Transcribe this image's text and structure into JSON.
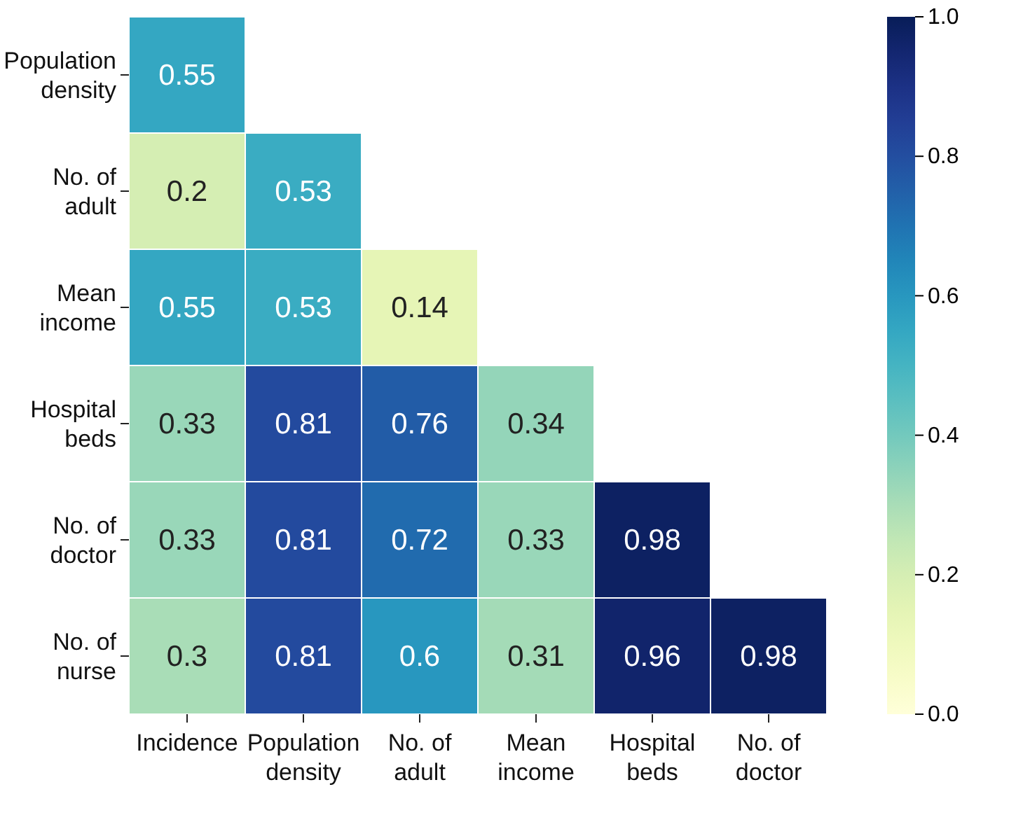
{
  "chart_data": {
    "type": "heatmap",
    "categories": [
      "Incidence",
      "Population density",
      "No. of adult",
      "Mean income",
      "Hospital beds",
      "No. of doctor"
    ],
    "y_categories": [
      "Population density",
      "No. of adult",
      "Mean income",
      "Hospital beds",
      "No. of doctor",
      "No. of nurse"
    ],
    "cells": [
      [
        0.55,
        null,
        null,
        null,
        null,
        null
      ],
      [
        0.2,
        0.53,
        null,
        null,
        null,
        null
      ],
      [
        0.55,
        0.53,
        0.14,
        null,
        null,
        null
      ],
      [
        0.33,
        0.81,
        0.76,
        0.34,
        null,
        null
      ],
      [
        0.33,
        0.81,
        0.72,
        0.33,
        0.98,
        null
      ],
      [
        0.3,
        0.81,
        0.6,
        0.31,
        0.96,
        0.98
      ]
    ],
    "data_labels": true,
    "clim": [
      0,
      1
    ],
    "cticks": [
      {
        "value": 0,
        "label": "0.0"
      },
      {
        "value": 0.2,
        "label": "0.2"
      },
      {
        "value": 0.4,
        "label": "0.4"
      },
      {
        "value": 0.6,
        "label": "0.6"
      },
      {
        "value": 0.8,
        "label": "0.8"
      },
      {
        "value": 1,
        "label": "1.0"
      }
    ]
  }
}
